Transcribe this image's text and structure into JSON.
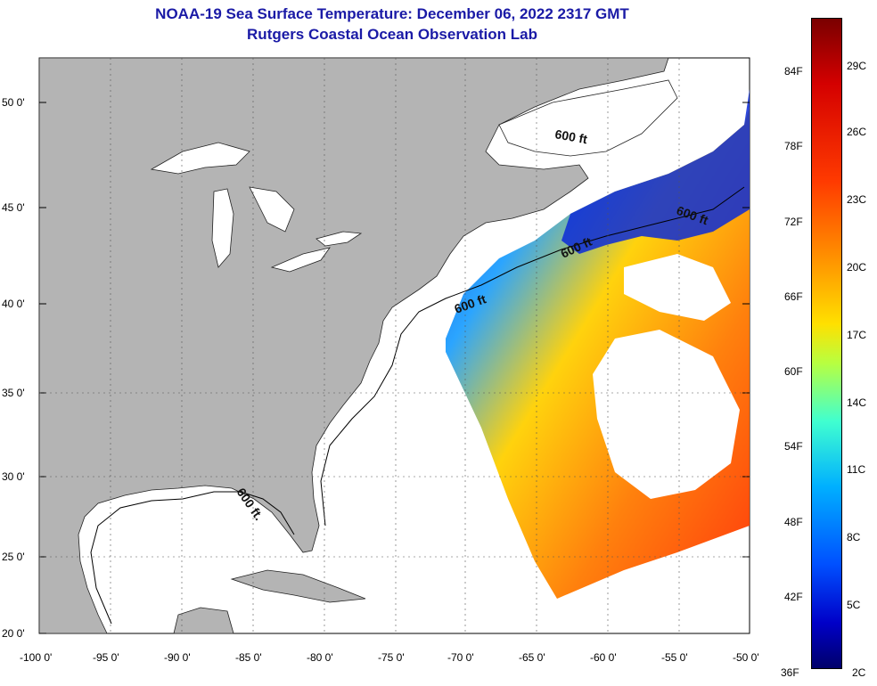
{
  "title": {
    "line1": "NOAA-19 Sea Surface Temperature:  December 06, 2022 2317 GMT",
    "line2": "Rutgers Coastal Ocean Observation Lab"
  },
  "map": {
    "lat_labels": [
      "50 0'",
      "45 0'",
      "40 0'",
      "35 0'",
      "30 0'",
      "25 0'",
      "20 0'"
    ],
    "lon_labels": [
      "-100 0'",
      "-95 0'",
      "-90 0'",
      "-85 0'",
      "-80 0'",
      "-75 0'",
      "-70 0'",
      "-65 0'",
      "-60 0'",
      "-55 0'",
      "-50 0'"
    ],
    "contour_labels": [
      "600 ft.",
      "600 ft",
      "600 ft",
      "600 ft",
      "600 ft"
    ],
    "colors": {
      "land": "#b4b4b4",
      "ocean": "#ffffff",
      "title": "#1a1aa6"
    }
  },
  "colorbar": {
    "fahrenheit": [
      "84F",
      "78F",
      "72F",
      "66F",
      "60F",
      "54F",
      "48F",
      "42F",
      "36F"
    ],
    "celsius": [
      "29C",
      "26C",
      "23C",
      "20C",
      "17C",
      "14C",
      "11C",
      "8C",
      "5C",
      "2C"
    ]
  }
}
